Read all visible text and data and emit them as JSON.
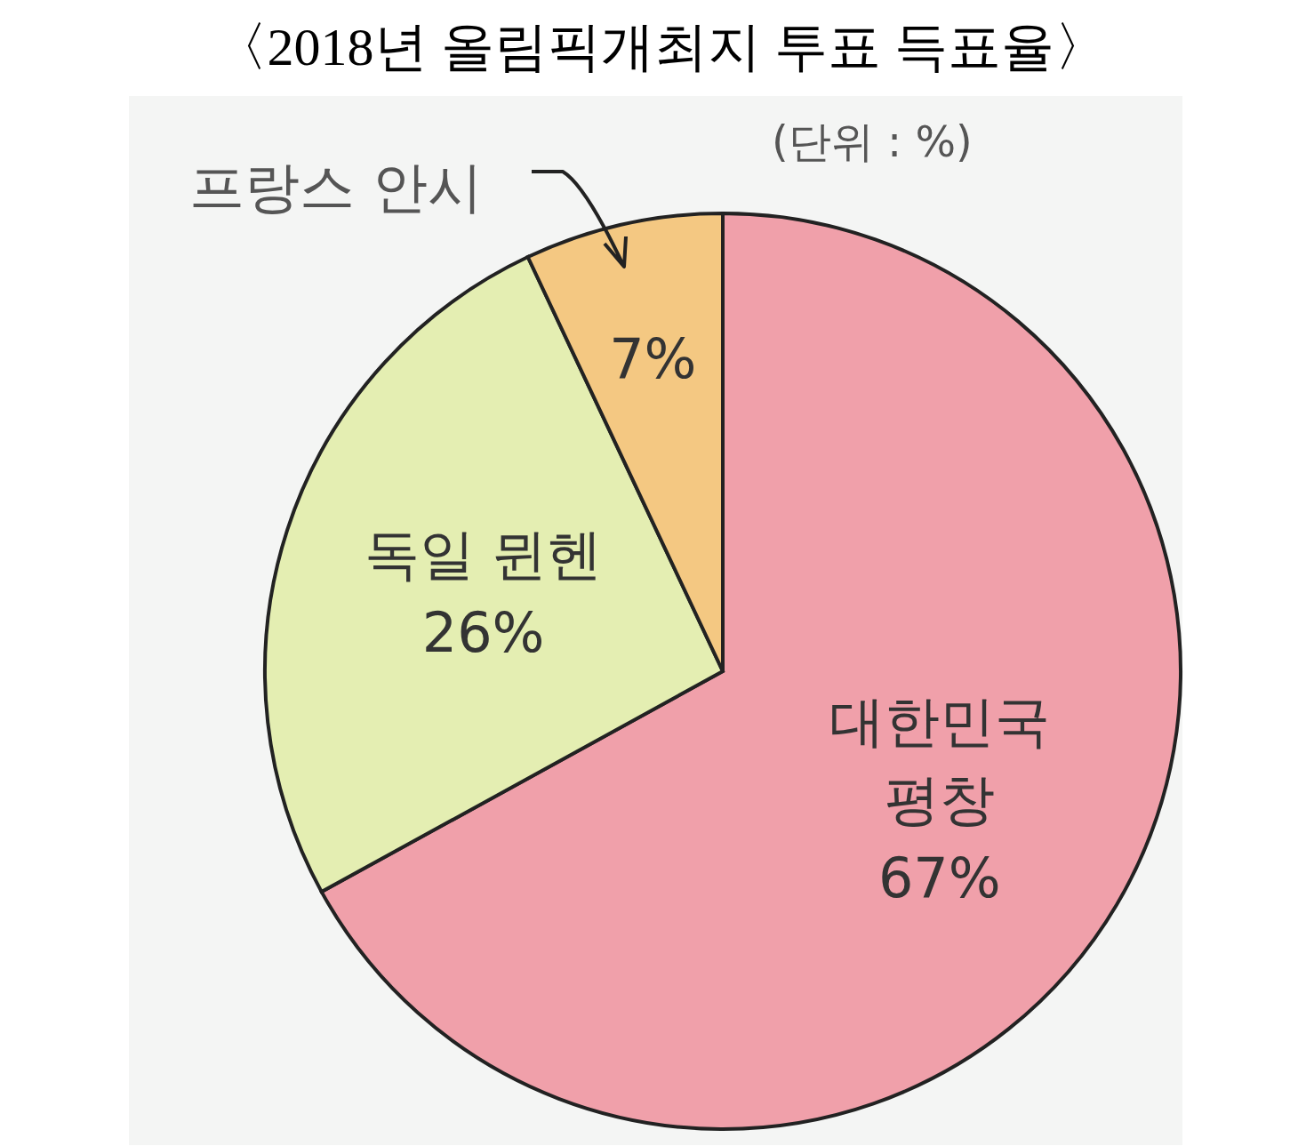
{
  "chart_data": {
    "type": "pie",
    "title": "〈2018년 올림픽개최지 투표 득표율〉",
    "categories": [
      "대한민국 평창",
      "독일 뮌헨",
      "프랑스 안시"
    ],
    "values": [
      67,
      26,
      7
    ],
    "value_labels": [
      "67%",
      "26%",
      "7%"
    ],
    "colors": [
      "#f0a0aa",
      "#e4eeb2",
      "#f4c882"
    ],
    "annotations": [
      "(단위 : %)"
    ]
  }
}
